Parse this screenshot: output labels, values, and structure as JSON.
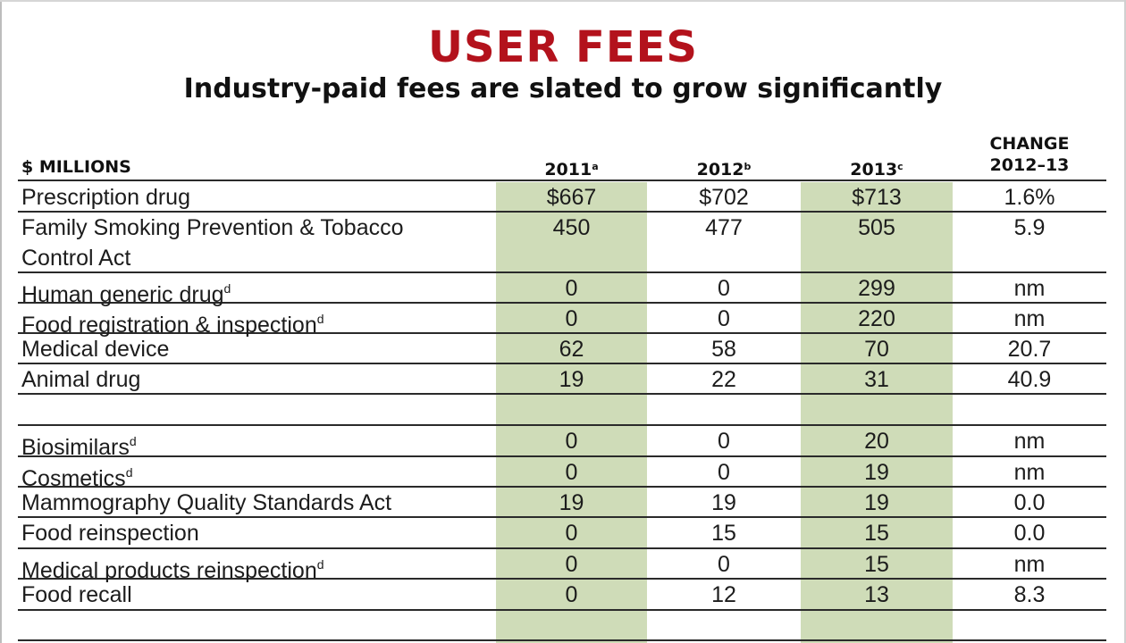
{
  "title": "USER FEES",
  "subtitle": "Industry-paid fees are slated to grow significantly",
  "columns": {
    "units": "$ MILLIONS",
    "y2011": "2011",
    "y2011_note": "a",
    "y2012": "2012",
    "y2012_note": "b",
    "y2013": "2013",
    "y2013_note": "c",
    "change_line1": "CHANGE",
    "change_line2": "2012–13"
  },
  "highlight_color": "#cfdcb8",
  "title_color": "#b3121c",
  "rows": [
    {
      "label": "Prescription drug",
      "note": "",
      "v2011": "$667",
      "v2012": "$702",
      "v2013": "$713",
      "change": "1.6%"
    },
    {
      "label": "Family Smoking Prevention & Tobacco",
      "label2": "Control Act",
      "note": "",
      "v2011": "450",
      "v2012": "477",
      "v2013": "505",
      "change": "5.9"
    },
    {
      "label": "Human generic drug",
      "note": "d",
      "v2011": "0",
      "v2012": "0",
      "v2013": "299",
      "change": "nm"
    },
    {
      "label": "Food registration & inspection",
      "note": "d",
      "v2011": "0",
      "v2012": "0",
      "v2013": "220",
      "change": "nm"
    },
    {
      "label": "Medical device",
      "note": "",
      "v2011": "62",
      "v2012": "58",
      "v2013": "70",
      "change": "20.7"
    },
    {
      "label": "Animal drug",
      "note": "",
      "v2011": "19",
      "v2012": "22",
      "v2013": "31",
      "change": "40.9"
    },
    {
      "label": "Biosimilars",
      "note": "d",
      "v2011": "0",
      "v2012": "0",
      "v2013": "20",
      "change": "nm"
    },
    {
      "label": "Cosmetics",
      "note": "d",
      "v2011": "0",
      "v2012": "0",
      "v2013": "19",
      "change": "nm"
    },
    {
      "label": "Mammography Quality Standards Act",
      "note": "",
      "v2011": "19",
      "v2012": "19",
      "v2013": "19",
      "change": "0.0"
    },
    {
      "label": "Food reinspection",
      "note": "",
      "v2011": "0",
      "v2012": "15",
      "v2013": "15",
      "change": "0.0"
    },
    {
      "label": "Medical products reinspection",
      "note": "d",
      "v2011": "0",
      "v2012": "0",
      "v2013": "15",
      "change": "nm"
    },
    {
      "label": "Food recall",
      "note": "",
      "v2011": "0",
      "v2012": "12",
      "v2013": "13",
      "change": "8.3"
    }
  ]
}
